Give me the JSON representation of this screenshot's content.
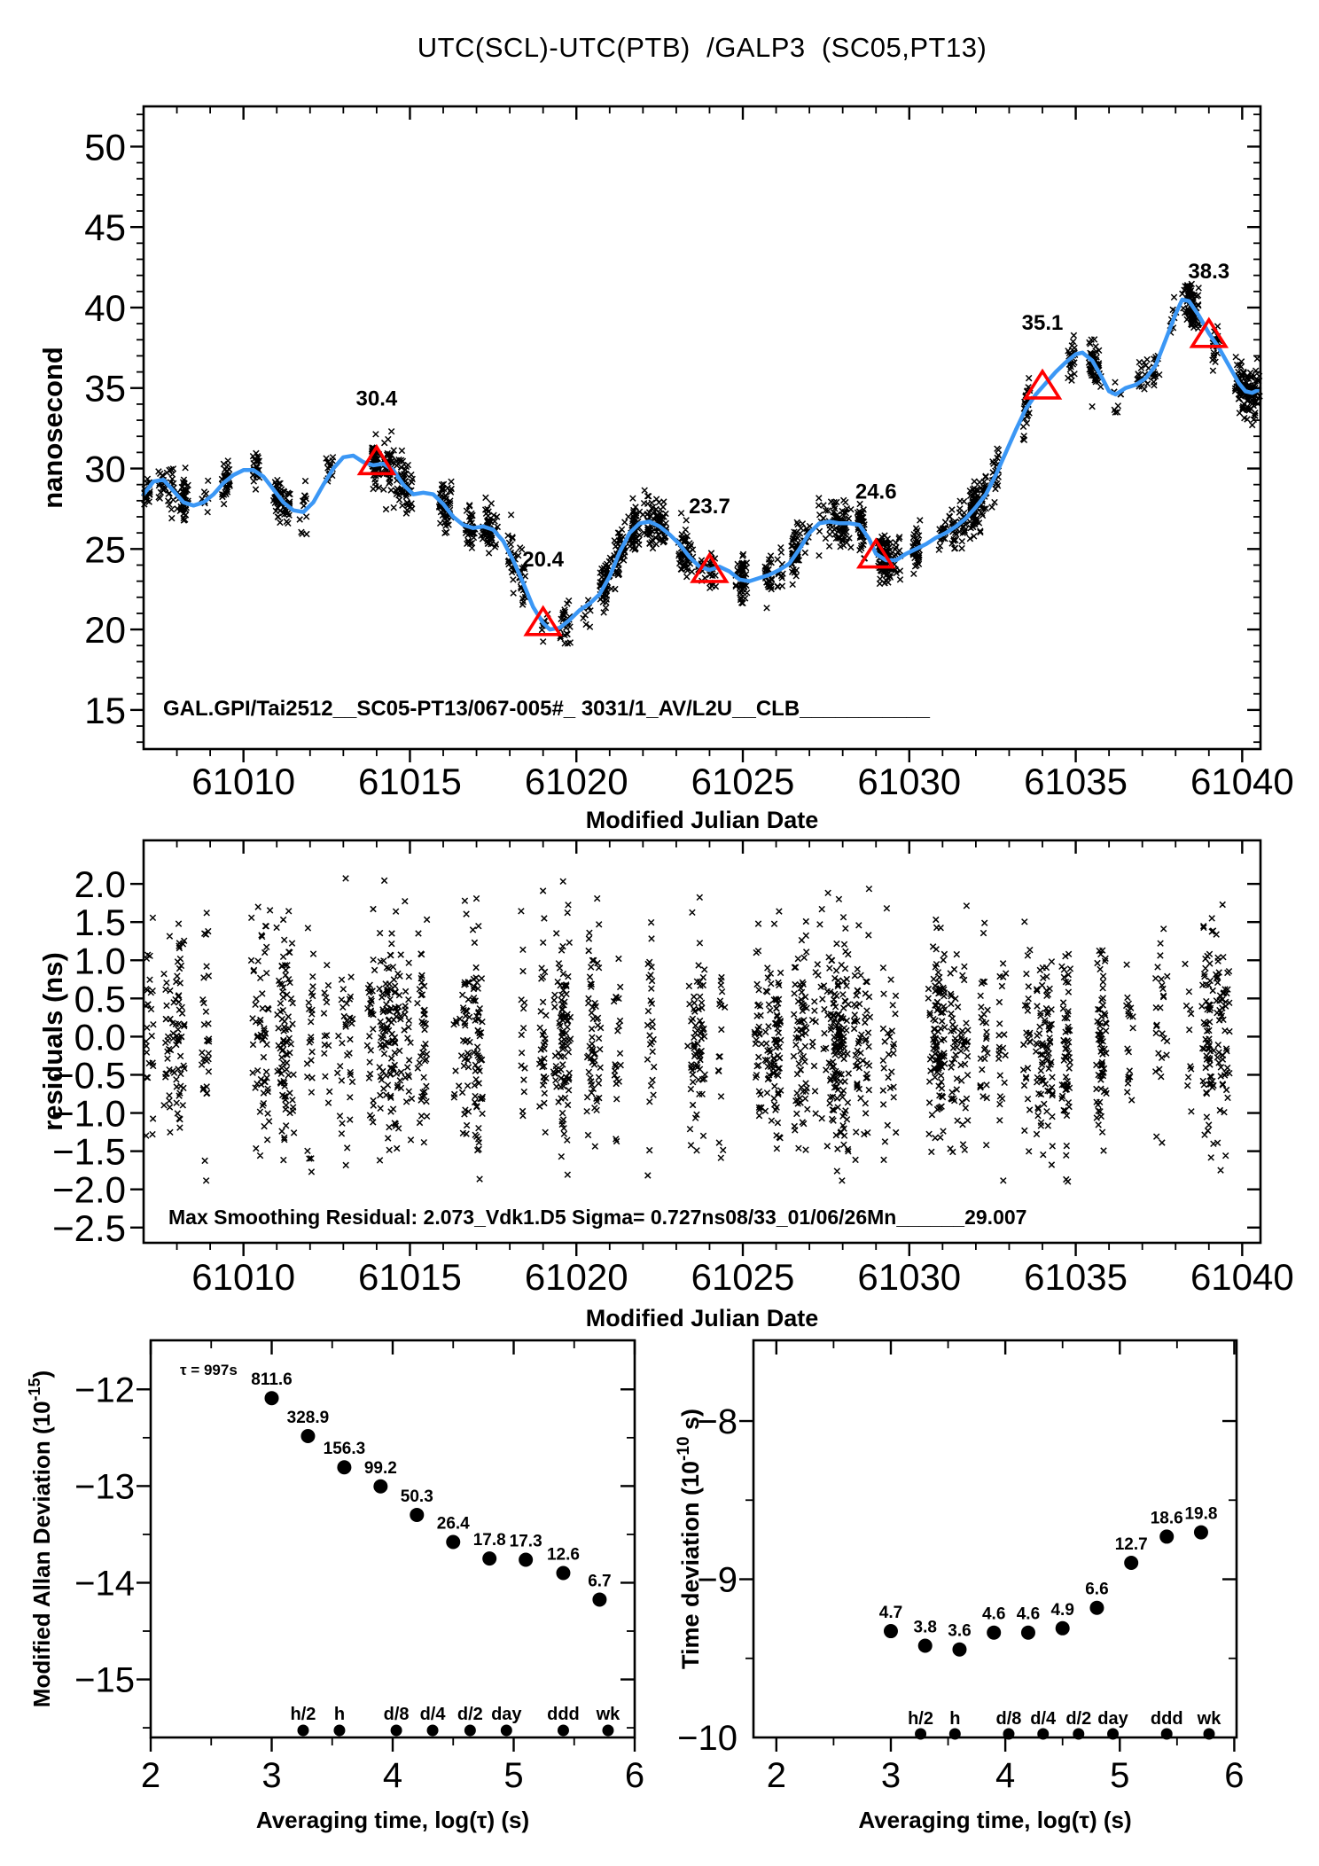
{
  "title": "UTC(SCL)-UTC(PTB)  /GALP3  (SC05,PT13)",
  "colors": {
    "line_blue": "#3b97f5",
    "accent_red": "#ff0000",
    "data_black": "#000000",
    "background": "#ffffff"
  },
  "chart_data": [
    {
      "id": "phase",
      "type": "scatter",
      "title": "UTC(SCL)-UTC(PTB)  /GALP3  (SC05,PT13)",
      "xlabel": "Modified Julian Date",
      "ylabel": "nanosecond",
      "xlim": [
        61007.0,
        61040.55
      ],
      "ylim": [
        12.57,
        52.5
      ],
      "xticks": [
        61010,
        61015,
        61020,
        61025,
        61030,
        61035,
        61040
      ],
      "xtick_labels": [
        "61010",
        "61015",
        "61020",
        "61025",
        "61030",
        "61035",
        "61040"
      ],
      "yticks": [
        15,
        20,
        25,
        30,
        35,
        40,
        45,
        50
      ],
      "ytick_labels": [
        "15",
        "20",
        "25",
        "30",
        "35",
        "40",
        "45",
        "50"
      ],
      "annotation": "GAL.GPI/Tai2512__SC05-PT13/067-005#_  3031/1_AV/L2U__CLB___________",
      "line": {
        "x": [
          61007.0,
          61007.3,
          61007.6,
          61007.9,
          61008.2,
          61008.5,
          61008.8,
          61009.1,
          61009.4,
          61009.7,
          61010.0,
          61010.3,
          61010.6,
          61010.9,
          61011.2,
          61011.5,
          61011.8,
          61012.1,
          61012.4,
          61012.7,
          61013.0,
          61013.3,
          61013.6,
          61013.9,
          61014.2,
          61014.5,
          61014.8,
          61015.1,
          61015.4,
          61015.7,
          61016.0,
          61016.3,
          61016.6,
          61016.9,
          61017.2,
          61017.5,
          61017.8,
          61018.1,
          61018.4,
          61018.7,
          61019.0,
          61019.2,
          61019.5,
          61019.8,
          61020.1,
          61020.4,
          61020.7,
          61021.0,
          61021.3,
          61021.6,
          61021.9,
          61022.2,
          61022.5,
          61022.8,
          61023.1,
          61023.4,
          61023.7,
          61024.0,
          61024.3,
          61024.6,
          61024.9,
          61025.2,
          61025.5,
          61025.8,
          61026.1,
          61026.4,
          61026.7,
          61027.0,
          61027.3,
          61027.6,
          61027.9,
          61028.2,
          61028.5,
          61028.8,
          61029.0,
          61029.3,
          61029.6,
          61029.9,
          61030.2,
          61030.5,
          61030.8,
          61031.1,
          61031.4,
          61031.7,
          61032.0,
          61032.3,
          61032.6,
          61032.9,
          61033.2,
          61033.5,
          61033.8,
          61034.1,
          61034.4,
          61034.7,
          61035.0,
          61035.2,
          61035.5,
          61035.8,
          61036.0,
          61036.2,
          61036.5,
          61036.8,
          61037.1,
          61037.4,
          61037.7,
          61038.0,
          61038.2,
          61038.4,
          61038.7,
          61039.0,
          61039.3,
          61039.6,
          61039.9,
          61040.1,
          61040.3,
          61040.5
        ],
        "y": [
          28.4,
          29.2,
          29.3,
          28.6,
          27.9,
          27.7,
          27.9,
          28.4,
          29.1,
          29.6,
          29.9,
          29.9,
          29.5,
          28.7,
          27.9,
          27.4,
          27.3,
          27.9,
          29.0,
          30.0,
          30.7,
          30.8,
          30.4,
          30.2,
          30.3,
          29.9,
          29.0,
          28.4,
          28.5,
          28.4,
          27.8,
          27.0,
          26.5,
          26.3,
          26.4,
          26.2,
          25.5,
          24.3,
          22.9,
          21.4,
          20.4,
          20.0,
          20.1,
          20.6,
          21.2,
          21.6,
          22.2,
          23.3,
          24.8,
          26.0,
          26.6,
          26.7,
          26.4,
          25.9,
          25.3,
          24.5,
          23.9,
          23.7,
          23.9,
          23.6,
          23.1,
          23.0,
          23.2,
          23.4,
          23.7,
          24.1,
          25.0,
          26.0,
          26.6,
          26.7,
          26.6,
          26.6,
          26.5,
          25.6,
          24.7,
          24.3,
          24.3,
          24.7,
          25.0,
          25.3,
          25.7,
          26.0,
          26.4,
          26.9,
          27.6,
          28.4,
          29.6,
          31.0,
          32.4,
          33.7,
          34.6,
          35.3,
          36.0,
          36.6,
          37.1,
          37.2,
          36.7,
          35.6,
          34.8,
          34.6,
          35.0,
          35.2,
          35.6,
          36.4,
          38.0,
          39.6,
          40.5,
          40.4,
          39.5,
          38.4,
          37.5,
          36.4,
          35.3,
          34.8,
          34.7,
          34.9
        ]
      },
      "daily_markers": {
        "x": [
          61014,
          61019,
          61024,
          61029,
          61034,
          61039
        ],
        "y": [
          30.4,
          20.4,
          23.7,
          24.6,
          35.1,
          38.3
        ],
        "labels": [
          "30.4",
          "20.4",
          "23.7",
          "24.6",
          "35.1",
          "38.3"
        ]
      },
      "noise": {
        "sigma": 0.727,
        "clusters": 115,
        "seed": 421301
      }
    },
    {
      "id": "residuals",
      "type": "scatter",
      "xlabel": "Modified Julian Date",
      "ylabel": "residuals (ns)",
      "xlim": [
        61007.0,
        61040.55
      ],
      "ylim": [
        -2.7,
        2.57
      ],
      "xticks": [
        61010,
        61015,
        61020,
        61025,
        61030,
        61035,
        61040
      ],
      "xtick_labels": [
        "61010",
        "61015",
        "61020",
        "61025",
        "61030",
        "61035",
        "61040"
      ],
      "yticks": [
        2.0,
        1.5,
        1.0,
        0.5,
        0.0,
        -0.5,
        -1.0,
        -1.5,
        -2.0,
        -2.5
      ],
      "ytick_labels": [
        "2.0",
        "1.5",
        "1.0",
        "0.5",
        "0.0",
        "−0.5",
        "−1.0",
        "−1.5",
        "−2.0",
        "−2.5"
      ],
      "annotation": "Max Smoothing Residual: 2.073_Vdk1.D5  Sigma= 0.727ns08/33_01/06/26Mn______29.007",
      "noise": {
        "sigma": 0.727,
        "max_abs": 2.073,
        "clusters": 118,
        "seed": 90217
      }
    },
    {
      "id": "mdev",
      "type": "scatter",
      "xlabel": "Averaging time, log(τ) (s)",
      "ylabel_prefix": "Modified Allan Deviation (10",
      "ylabel_exp": "-15",
      "ylabel_suffix": ")",
      "tau_note": "τ = 997s",
      "xlim": [
        2.0,
        6.0
      ],
      "ylim": [
        -15.6,
        -11.493
      ],
      "xticks": [
        2,
        3,
        4,
        5,
        6
      ],
      "xtick_labels": [
        "2",
        "3",
        "4",
        "5",
        "6"
      ],
      "yticks": [
        -12,
        -13,
        -14,
        -15
      ],
      "ytick_labels": [
        "−12",
        "−13",
        "−14",
        "−15"
      ],
      "exponent": -15,
      "points": {
        "log_tau": [
          3.0,
          3.3,
          3.6,
          3.9,
          4.2,
          4.5,
          4.8,
          5.1,
          5.41,
          5.71
        ],
        "values": [
          811.6,
          328.9,
          156.3,
          99.2,
          50.3,
          26.4,
          17.8,
          17.3,
          12.6,
          6.7
        ],
        "labels": [
          "811.6",
          "328.9",
          "156.3",
          "99.2",
          "50.3",
          "26.4",
          "17.8",
          "17.3",
          "12.6",
          "6.7"
        ]
      },
      "time_markers": {
        "labels": [
          "h/2",
          "h",
          "d/8",
          "d/4",
          "d/2",
          "day",
          "ddd",
          "wk"
        ],
        "log_tau": [
          3.26,
          3.56,
          4.03,
          4.33,
          4.64,
          4.94,
          5.41,
          5.78
        ]
      }
    },
    {
      "id": "tdev",
      "type": "scatter",
      "xlabel": "Averaging time, log(τ) (s)",
      "ylabel_prefix": "Time deviation (10",
      "ylabel_exp": "-10",
      "ylabel_suffix": " s)",
      "xlim": [
        1.8,
        6.02
      ],
      "ylim": [
        -10.0,
        -7.49
      ],
      "xticks": [
        2,
        3,
        4,
        5,
        6
      ],
      "xtick_labels": [
        "2",
        "3",
        "4",
        "5",
        "6"
      ],
      "yticks": [
        -8,
        -9,
        -10
      ],
      "ytick_labels": [
        "−8",
        "−9",
        "−10"
      ],
      "exponent": -10,
      "points": {
        "log_tau": [
          3.0,
          3.3,
          3.6,
          3.9,
          4.2,
          4.5,
          4.8,
          5.1,
          5.41,
          5.71
        ],
        "values": [
          4.7,
          3.8,
          3.6,
          4.6,
          4.6,
          4.9,
          6.6,
          12.7,
          18.6,
          19.8
        ],
        "labels": [
          "4.7",
          "3.8",
          "3.6",
          "4.6",
          "4.6",
          "4.9",
          "6.6",
          "12.7",
          "18.6",
          "19.8"
        ]
      },
      "time_markers": {
        "labels": [
          "h/2",
          "h",
          "d/8",
          "d/4",
          "d/2",
          "day",
          "ddd",
          "wk"
        ],
        "log_tau": [
          3.26,
          3.56,
          4.03,
          4.33,
          4.64,
          4.94,
          5.41,
          5.78
        ]
      }
    }
  ]
}
